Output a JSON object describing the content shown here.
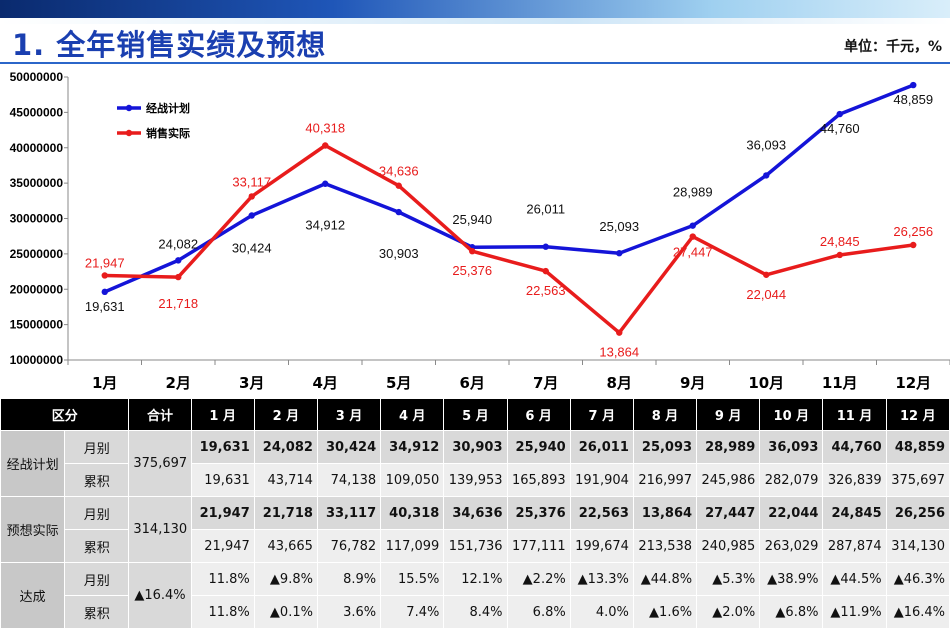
{
  "header": {
    "title": "1. 全年销售实绩及预想",
    "unit": "单位：千元，%"
  },
  "colors": {
    "plan": "#1414d8",
    "actual": "#e81c1c",
    "title": "#1a3fb0"
  },
  "chart_data": {
    "type": "line",
    "categories": [
      "1月",
      "2月",
      "3月",
      "4月",
      "5月",
      "6月",
      "7月",
      "8月",
      "9月",
      "10月",
      "11月",
      "12月"
    ],
    "ylim": [
      10000000,
      50000000
    ],
    "yticks": [
      "10000000",
      "15000000",
      "20000000",
      "25000000",
      "30000000",
      "35000000",
      "40000000",
      "45000000",
      "50000000"
    ],
    "series": [
      {
        "name": "经战计划",
        "values": [
          19631,
          24082,
          30424,
          34912,
          30903,
          25940,
          26011,
          25093,
          28989,
          36093,
          44760,
          48859
        ],
        "labels": [
          "19,631",
          "24,082",
          "30,424",
          "34,912",
          "30,903",
          "25,940",
          "26,011",
          "25,093",
          "28,989",
          "36,093",
          "44,760",
          "48,859"
        ]
      },
      {
        "name": "销售实际",
        "values": [
          21947,
          21718,
          33117,
          40318,
          34636,
          25376,
          22563,
          13864,
          27447,
          22044,
          24845,
          26256
        ],
        "labels": [
          "21,947",
          "21,718",
          "33,117",
          "40,318",
          "34,636",
          "25,376",
          "22,563",
          "13,864",
          "27,447",
          "22,044",
          "24,845",
          "26,256"
        ]
      }
    ]
  },
  "table": {
    "headers": [
      "区分",
      "合计",
      "1 月",
      "2 月",
      "3 月",
      "4 月",
      "5 月",
      "6 月",
      "7 月",
      "8 月",
      "9 月",
      "10 月",
      "11 月",
      "12 月"
    ],
    "groups": [
      {
        "name": "经战计划",
        "total": "375,697",
        "rows": [
          {
            "label": "月别",
            "values": [
              "19,631",
              "24,082",
              "30,424",
              "34,912",
              "30,903",
              "25,940",
              "26,011",
              "25,093",
              "28,989",
              "36,093",
              "44,760",
              "48,859"
            ]
          },
          {
            "label": "累积",
            "values": [
              "19,631",
              "43,714",
              "74,138",
              "109,050",
              "139,953",
              "165,893",
              "191,904",
              "216,997",
              "245,986",
              "282,079",
              "326,839",
              "375,697"
            ]
          }
        ]
      },
      {
        "name": "预想实际",
        "total": "314,130",
        "rows": [
          {
            "label": "月别",
            "values": [
              "21,947",
              "21,718",
              "33,117",
              "40,318",
              "34,636",
              "25,376",
              "22,563",
              "13,864",
              "27,447",
              "22,044",
              "24,845",
              "26,256"
            ]
          },
          {
            "label": "累积",
            "values": [
              "21,947",
              "43,665",
              "76,782",
              "117,099",
              "151,736",
              "177,111",
              "199,674",
              "213,538",
              "240,985",
              "263,029",
              "287,874",
              "314,130"
            ]
          }
        ]
      },
      {
        "name": "达成",
        "total": "▲16.4%",
        "rows": [
          {
            "label": "月别",
            "values": [
              "11.8%",
              "▲9.8%",
              "8.9%",
              "15.5%",
              "12.1%",
              "▲2.2%",
              "▲13.3%",
              "▲44.8%",
              "▲5.3%",
              "▲38.9%",
              "▲44.5%",
              "▲46.3%"
            ]
          },
          {
            "label": "累积",
            "values": [
              "11.8%",
              "▲0.1%",
              "3.6%",
              "7.4%",
              "8.4%",
              "6.8%",
              "4.0%",
              "▲1.6%",
              "▲2.0%",
              "▲6.8%",
              "▲11.9%",
              "▲16.4%"
            ]
          }
        ]
      }
    ]
  }
}
